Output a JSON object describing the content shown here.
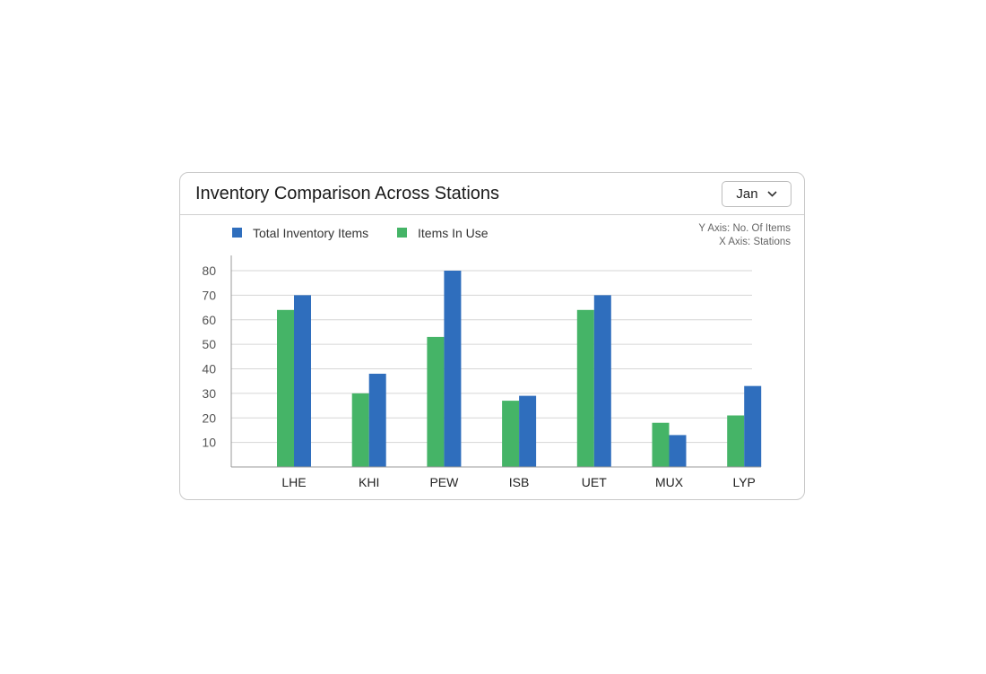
{
  "header": {
    "title": "Inventory Comparison Across Stations",
    "month_value": "Jan",
    "dropdown_icon": "chevron-down-icon"
  },
  "axis_notes": {
    "y": "Y Axis: No. Of Items",
    "x": "X Axis: Stations"
  },
  "colors": {
    "total": "#2f6ebd",
    "in_use": "#45b467",
    "grid": "#d6d6d6",
    "axis": "#999999"
  },
  "chart_data": {
    "type": "bar",
    "title": "Inventory Comparison Across Stations",
    "xlabel": "X Axis: Stations",
    "ylabel": "Y Axis: No. Of Items",
    "categories": [
      "LHE",
      "KHI",
      "PEW",
      "ISB",
      "UET",
      "MUX",
      "LYP"
    ],
    "series": [
      {
        "name": "Items In Use",
        "values": [
          64,
          30,
          53,
          27,
          64,
          18,
          21
        ]
      },
      {
        "name": "Total Inventory Items",
        "values": [
          70,
          38,
          80,
          29,
          70,
          13,
          33
        ]
      }
    ],
    "yticks": [
      10,
      20,
      30,
      40,
      50,
      60,
      70,
      80
    ],
    "ylim": [
      0,
      80
    ],
    "grid": true,
    "legend_position": "top-left",
    "legend": [
      "Total Inventory Items",
      "Items In Use"
    ]
  }
}
